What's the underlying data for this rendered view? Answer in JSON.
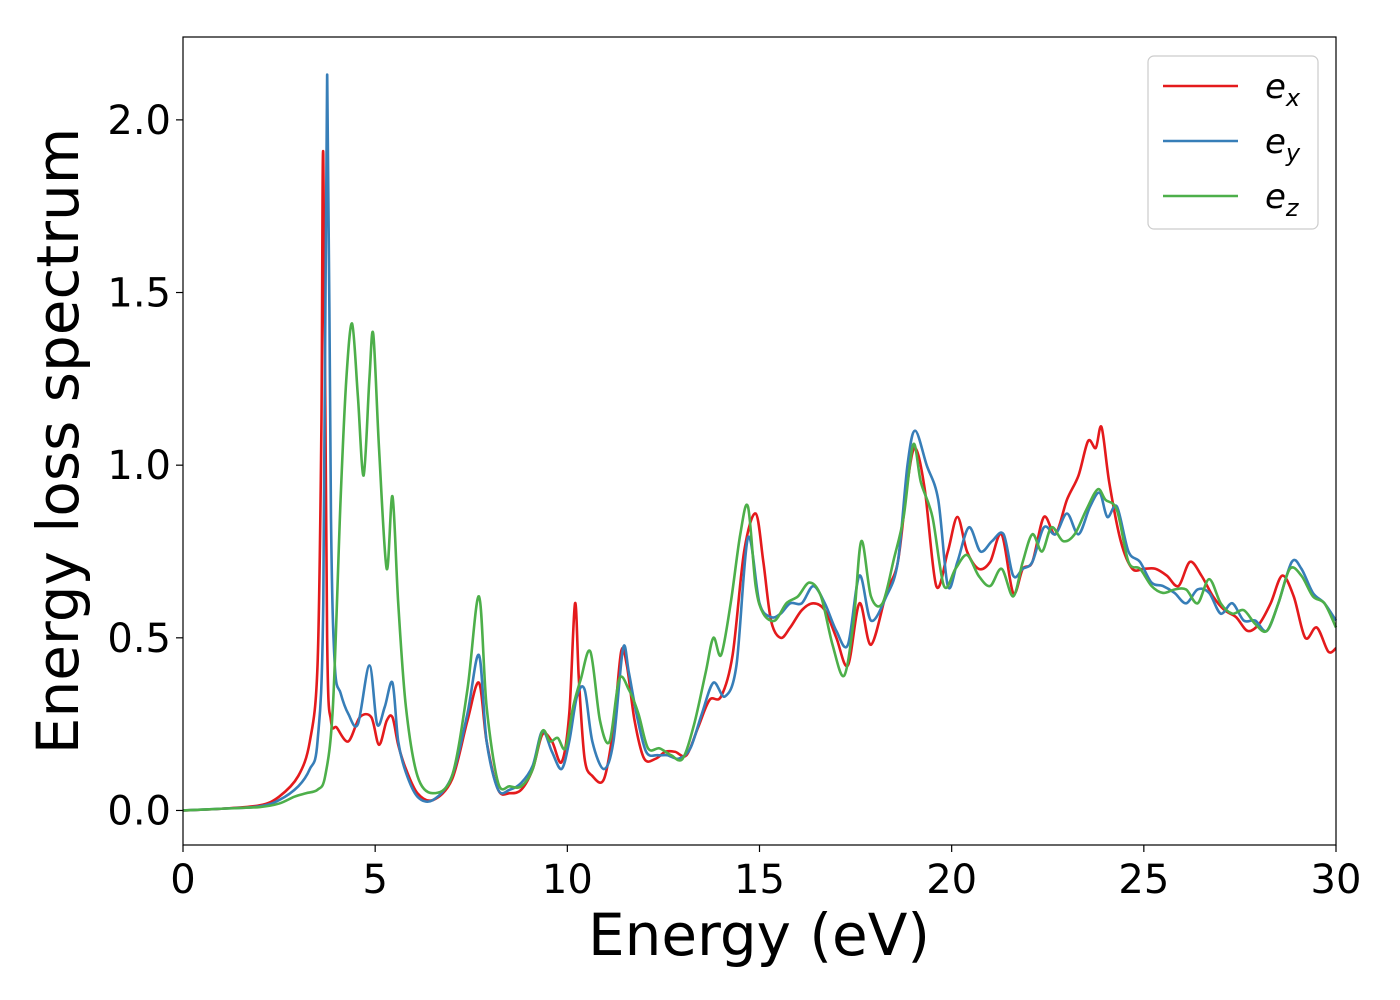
{
  "chart_data": {
    "type": "line",
    "title": "",
    "xlabel": "Energy (eV)",
    "ylabel": "Energy loss spectrum",
    "xlim": [
      0,
      30
    ],
    "ylim": [
      -0.1,
      2.24
    ],
    "xticks": [
      0,
      5,
      10,
      15,
      20,
      25,
      30
    ],
    "xtick_labels": [
      "0",
      "5",
      "10",
      "15",
      "20",
      "25",
      "30"
    ],
    "yticks": [
      0.0,
      0.5,
      1.0,
      1.5,
      2.0
    ],
    "ytick_labels": [
      "0.0",
      "0.5",
      "1.0",
      "1.5",
      "2.0"
    ],
    "grid": false,
    "legend_position": "top-right",
    "series": [
      {
        "name_base": "e",
        "name_sub": "x",
        "color": "#e41a1c",
        "x": [
          0,
          1,
          2,
          2.5,
          3,
          3.3,
          3.5,
          3.6,
          3.65,
          3.75,
          3.85,
          4,
          4.3,
          4.6,
          4.9,
          5.1,
          5.3,
          5.45,
          5.6,
          5.8,
          6.1,
          6.5,
          7,
          7.4,
          7.7,
          7.9,
          8.2,
          8.5,
          8.8,
          9.1,
          9.35,
          9.6,
          9.85,
          10.05,
          10.2,
          10.3,
          10.45,
          10.65,
          10.95,
          11.2,
          11.4,
          11.55,
          11.75,
          12,
          12.3,
          12.55,
          12.8,
          13.1,
          13.4,
          13.7,
          14.0,
          14.3,
          14.6,
          14.9,
          15.1,
          15.3,
          15.55,
          15.8,
          16.1,
          16.4,
          16.7,
          17.0,
          17.3,
          17.6,
          17.9,
          18.3,
          18.6,
          18.85,
          19.05,
          19.3,
          19.6,
          19.9,
          20.15,
          20.4,
          20.7,
          21.0,
          21.3,
          21.6,
          21.85,
          22.1,
          22.4,
          22.7,
          23.0,
          23.3,
          23.55,
          23.75,
          23.9,
          24.1,
          24.4,
          24.7,
          25.0,
          25.3,
          25.6,
          25.9,
          26.2,
          26.5,
          26.8,
          27.1,
          27.4,
          27.7,
          28.0,
          28.3,
          28.6,
          28.9,
          29.2,
          29.5,
          29.8,
          30
        ],
        "y": [
          0,
          0.005,
          0.015,
          0.04,
          0.1,
          0.2,
          0.42,
          1.1,
          1.9,
          0.5,
          0.26,
          0.24,
          0.2,
          0.27,
          0.27,
          0.19,
          0.26,
          0.27,
          0.19,
          0.12,
          0.05,
          0.03,
          0.09,
          0.26,
          0.37,
          0.2,
          0.06,
          0.05,
          0.06,
          0.12,
          0.22,
          0.2,
          0.14,
          0.28,
          0.6,
          0.38,
          0.15,
          0.1,
          0.09,
          0.24,
          0.46,
          0.42,
          0.26,
          0.15,
          0.15,
          0.17,
          0.17,
          0.16,
          0.24,
          0.32,
          0.33,
          0.45,
          0.75,
          0.86,
          0.72,
          0.55,
          0.5,
          0.53,
          0.58,
          0.6,
          0.58,
          0.5,
          0.42,
          0.6,
          0.48,
          0.63,
          0.72,
          0.95,
          1.05,
          0.93,
          0.65,
          0.75,
          0.85,
          0.75,
          0.7,
          0.72,
          0.8,
          0.63,
          0.7,
          0.72,
          0.85,
          0.8,
          0.9,
          0.97,
          1.07,
          1.05,
          1.11,
          0.95,
          0.78,
          0.7,
          0.7,
          0.7,
          0.68,
          0.65,
          0.72,
          0.68,
          0.62,
          0.58,
          0.56,
          0.52,
          0.54,
          0.6,
          0.68,
          0.62,
          0.5,
          0.53,
          0.46,
          0.47
        ]
      },
      {
        "name_base": "e",
        "name_sub": "y",
        "color": "#377eb8",
        "x": [
          0,
          1,
          2,
          2.5,
          3,
          3.3,
          3.5,
          3.65,
          3.75,
          3.85,
          3.95,
          4.1,
          4.3,
          4.55,
          4.85,
          5.05,
          5.25,
          5.45,
          5.6,
          5.8,
          6.1,
          6.5,
          7,
          7.4,
          7.7,
          7.9,
          8.2,
          8.5,
          8.8,
          9.1,
          9.35,
          9.6,
          9.85,
          10.05,
          10.25,
          10.45,
          10.65,
          10.95,
          11.2,
          11.45,
          11.6,
          11.8,
          12.05,
          12.35,
          12.6,
          12.9,
          13.2,
          13.5,
          13.8,
          14.1,
          14.4,
          14.7,
          15.0,
          15.3,
          15.55,
          15.8,
          16.1,
          16.4,
          16.7,
          17.0,
          17.3,
          17.6,
          17.9,
          18.3,
          18.6,
          18.85,
          19.05,
          19.35,
          19.65,
          19.9,
          20.15,
          20.45,
          20.75,
          21.05,
          21.35,
          21.6,
          21.85,
          22.1,
          22.4,
          22.7,
          23.0,
          23.3,
          23.6,
          23.85,
          24.05,
          24.3,
          24.6,
          24.9,
          25.2,
          25.5,
          25.8,
          26.1,
          26.4,
          26.7,
          27.0,
          27.3,
          27.6,
          27.9,
          28.2,
          28.5,
          28.85,
          29.1,
          29.4,
          29.7,
          30
        ],
        "y": [
          0,
          0.005,
          0.012,
          0.03,
          0.07,
          0.12,
          0.2,
          0.6,
          2.13,
          0.85,
          0.42,
          0.34,
          0.28,
          0.25,
          0.42,
          0.25,
          0.3,
          0.37,
          0.2,
          0.11,
          0.04,
          0.03,
          0.1,
          0.28,
          0.45,
          0.2,
          0.06,
          0.06,
          0.08,
          0.13,
          0.23,
          0.17,
          0.12,
          0.2,
          0.33,
          0.35,
          0.2,
          0.12,
          0.2,
          0.47,
          0.4,
          0.28,
          0.17,
          0.16,
          0.16,
          0.15,
          0.18,
          0.28,
          0.37,
          0.33,
          0.42,
          0.79,
          0.6,
          0.56,
          0.57,
          0.6,
          0.6,
          0.65,
          0.6,
          0.52,
          0.48,
          0.68,
          0.55,
          0.62,
          0.72,
          1.0,
          1.1,
          1.0,
          0.9,
          0.65,
          0.72,
          0.82,
          0.75,
          0.78,
          0.8,
          0.68,
          0.7,
          0.72,
          0.82,
          0.8,
          0.86,
          0.8,
          0.88,
          0.92,
          0.85,
          0.88,
          0.75,
          0.72,
          0.66,
          0.65,
          0.63,
          0.6,
          0.64,
          0.63,
          0.57,
          0.6,
          0.55,
          0.55,
          0.52,
          0.6,
          0.72,
          0.7,
          0.63,
          0.6,
          0.55
        ]
      },
      {
        "name_base": "e",
        "name_sub": "z",
        "color": "#4daf4a",
        "x": [
          0,
          1,
          2,
          2.5,
          2.9,
          3.2,
          3.5,
          3.7,
          3.9,
          4.1,
          4.25,
          4.4,
          4.55,
          4.7,
          4.85,
          4.95,
          5.1,
          5.3,
          5.45,
          5.6,
          5.8,
          6.1,
          6.5,
          7,
          7.4,
          7.7,
          7.9,
          8.2,
          8.5,
          8.8,
          9.1,
          9.35,
          9.55,
          9.75,
          9.95,
          10.15,
          10.35,
          10.6,
          10.85,
          11.1,
          11.35,
          11.6,
          11.85,
          12.1,
          12.4,
          12.7,
          13.0,
          13.3,
          13.6,
          13.8,
          14.0,
          14.25,
          14.5,
          14.7,
          14.9,
          15.1,
          15.4,
          15.7,
          16.0,
          16.3,
          16.6,
          16.9,
          17.2,
          17.45,
          17.65,
          17.9,
          18.2,
          18.5,
          18.75,
          19.0,
          19.2,
          19.5,
          19.8,
          20.1,
          20.4,
          20.7,
          21.0,
          21.3,
          21.6,
          21.85,
          22.1,
          22.35,
          22.6,
          22.9,
          23.2,
          23.5,
          23.8,
          24.0,
          24.3,
          24.6,
          24.9,
          25.2,
          25.5,
          25.8,
          26.1,
          26.4,
          26.7,
          27.0,
          27.3,
          27.6,
          27.9,
          28.2,
          28.5,
          28.8,
          29.1,
          29.4,
          29.7,
          30
        ],
        "y": [
          0,
          0.005,
          0.01,
          0.02,
          0.04,
          0.05,
          0.06,
          0.1,
          0.3,
          0.9,
          1.25,
          1.41,
          1.2,
          0.97,
          1.25,
          1.38,
          1.05,
          0.7,
          0.91,
          0.6,
          0.3,
          0.1,
          0.05,
          0.1,
          0.35,
          0.62,
          0.3,
          0.08,
          0.07,
          0.07,
          0.12,
          0.23,
          0.2,
          0.21,
          0.18,
          0.3,
          0.38,
          0.46,
          0.26,
          0.2,
          0.38,
          0.35,
          0.28,
          0.18,
          0.18,
          0.16,
          0.15,
          0.25,
          0.4,
          0.5,
          0.45,
          0.6,
          0.8,
          0.88,
          0.65,
          0.57,
          0.55,
          0.6,
          0.62,
          0.66,
          0.62,
          0.48,
          0.39,
          0.55,
          0.78,
          0.62,
          0.6,
          0.73,
          0.85,
          1.06,
          0.95,
          0.85,
          0.65,
          0.7,
          0.74,
          0.68,
          0.65,
          0.7,
          0.62,
          0.72,
          0.8,
          0.75,
          0.82,
          0.78,
          0.8,
          0.87,
          0.93,
          0.9,
          0.87,
          0.72,
          0.7,
          0.65,
          0.63,
          0.64,
          0.64,
          0.6,
          0.67,
          0.6,
          0.57,
          0.58,
          0.54,
          0.52,
          0.6,
          0.7,
          0.68,
          0.62,
          0.6,
          0.53
        ]
      }
    ]
  }
}
